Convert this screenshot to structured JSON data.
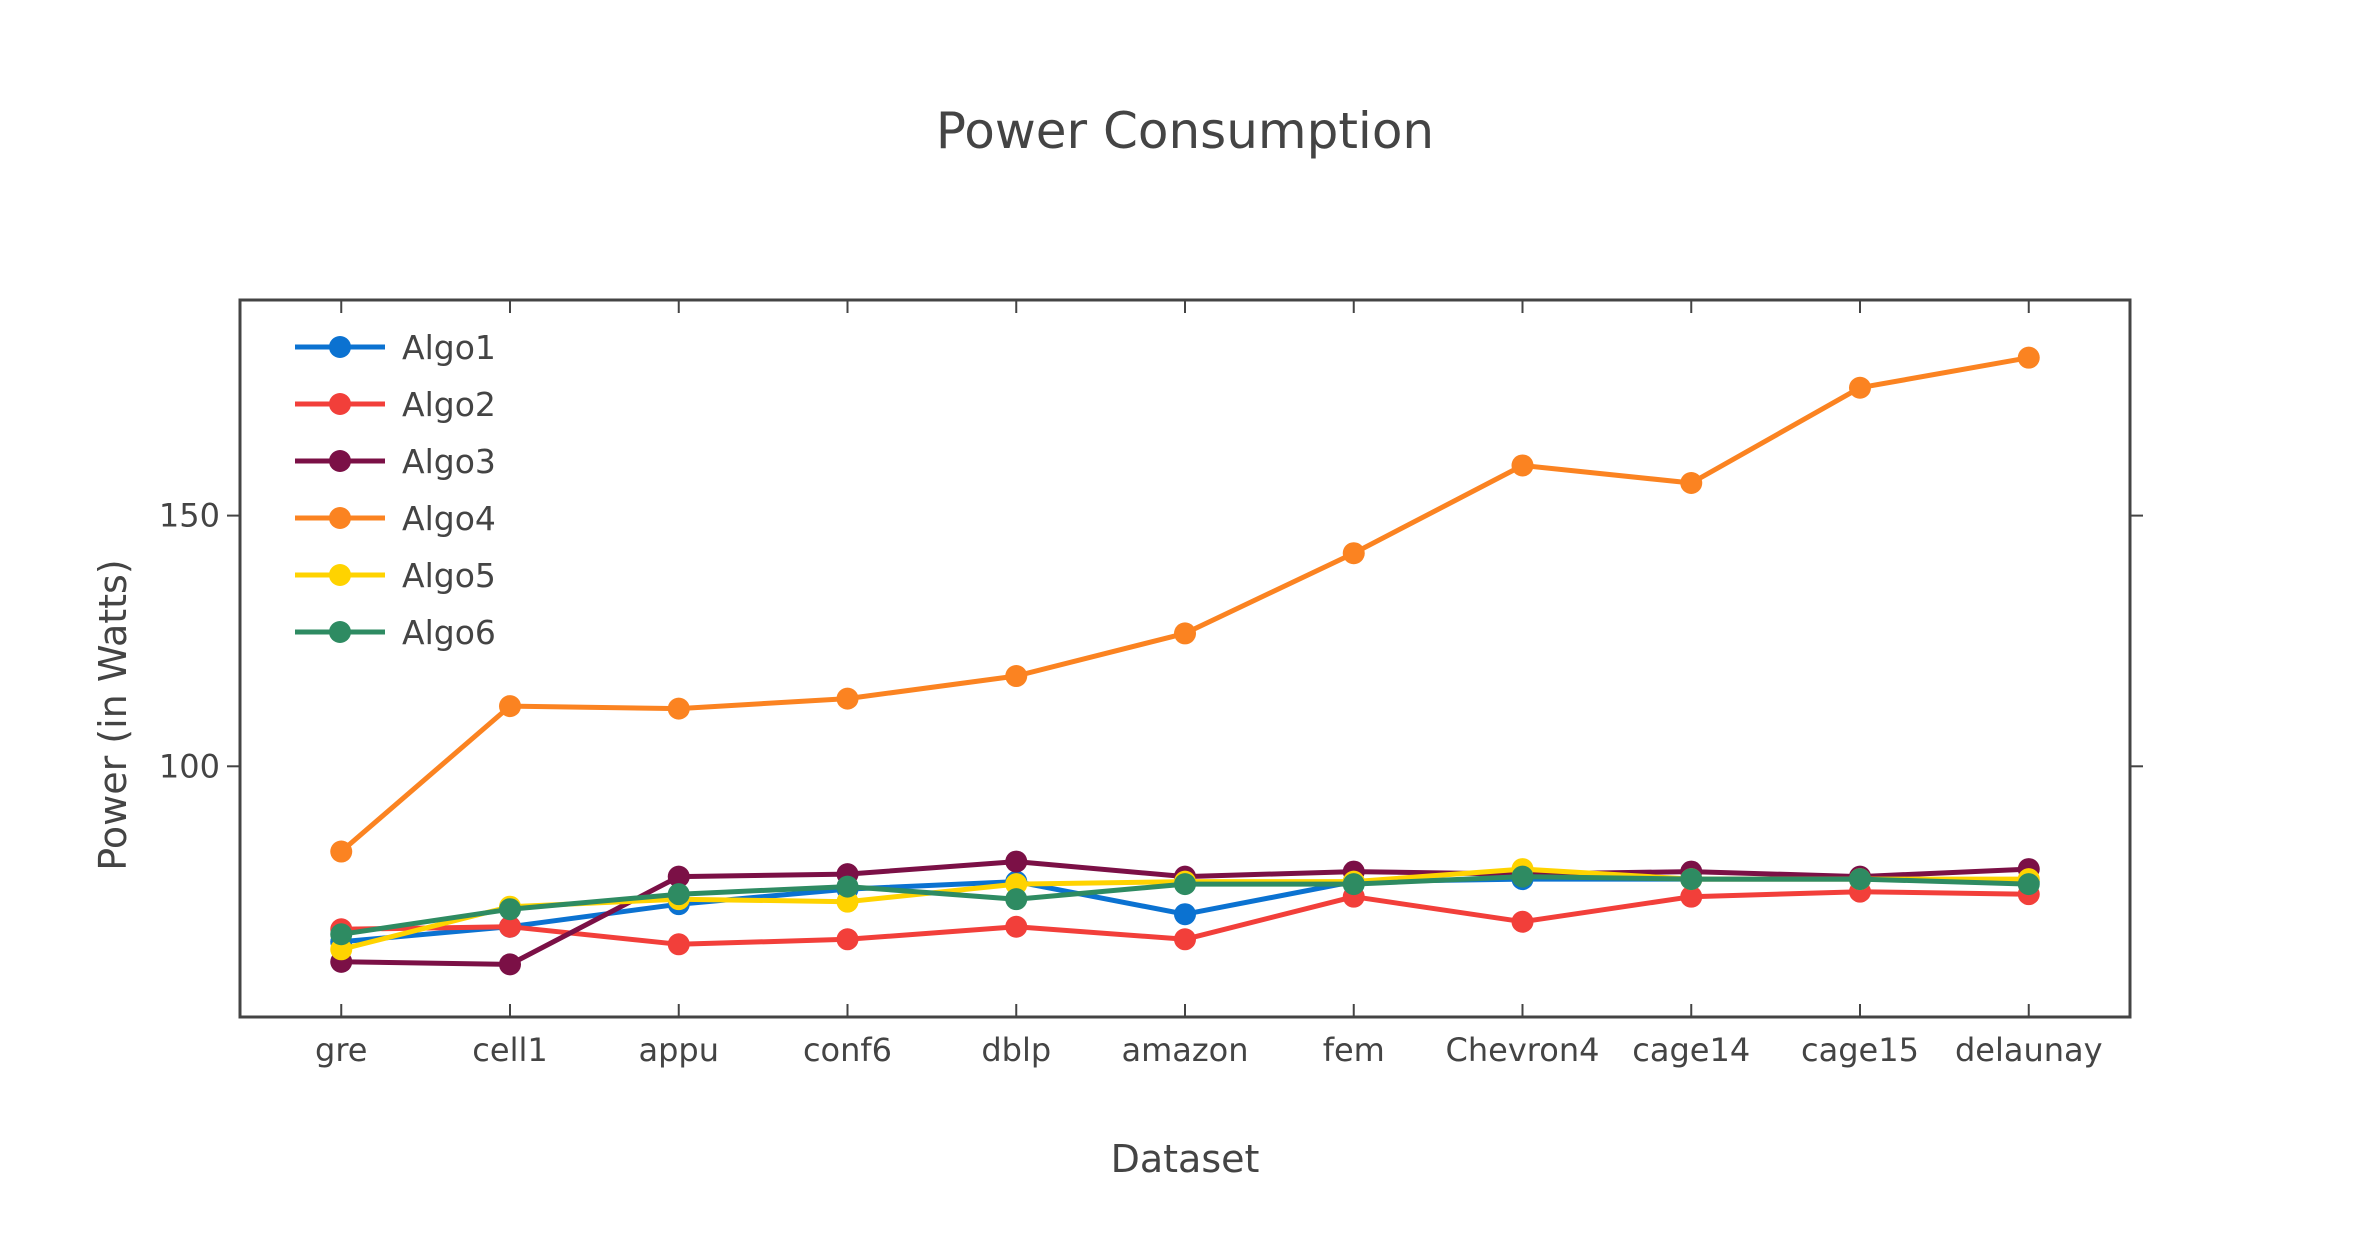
{
  "chart_data": {
    "type": "line",
    "title": "Power Consumption",
    "xlabel": "Dataset",
    "ylabel": "Power (in Watts)",
    "categories": [
      "gre",
      "cell1",
      "appu",
      "conf6",
      "dblp",
      "amazon",
      "fem",
      "Chevron4",
      "cage14",
      "cage15",
      "delaunay"
    ],
    "ylim": [
      50,
      193
    ],
    "yticks": [
      100,
      150
    ],
    "grid": false,
    "legend_position": "top-left",
    "series": [
      {
        "name": "Algo1",
        "color": "#0b72d1",
        "values": [
          65,
          68,
          72.5,
          75.5,
          77,
          70.5,
          77,
          77.5,
          77.5,
          77.5,
          77
        ]
      },
      {
        "name": "Algo2",
        "color": "#f23f3a",
        "values": [
          67.5,
          68,
          64.5,
          65.5,
          68,
          65.5,
          74,
          69,
          74,
          75,
          74.5
        ]
      },
      {
        "name": "Algo3",
        "color": "#7b1046",
        "values": [
          61,
          60.5,
          78,
          78.5,
          81,
          78,
          79,
          78.5,
          79,
          78,
          79.5
        ]
      },
      {
        "name": "Algo4",
        "color": "#fb8321",
        "values": [
          83,
          112,
          111.5,
          113.5,
          118,
          126.5,
          142.5,
          160,
          156.5,
          175.5,
          181.5
        ]
      },
      {
        "name": "Algo5",
        "color": "#ffd300",
        "values": [
          63.5,
          72,
          73.5,
          73,
          76.5,
          77,
          77,
          79.5,
          77.5,
          77.5,
          77.5
        ]
      },
      {
        "name": "Algo6",
        "color": "#2e8b62",
        "values": [
          66.5,
          71.5,
          74.5,
          76,
          73.5,
          76.5,
          76.5,
          78,
          77.5,
          77.5,
          76.5
        ]
      }
    ]
  }
}
